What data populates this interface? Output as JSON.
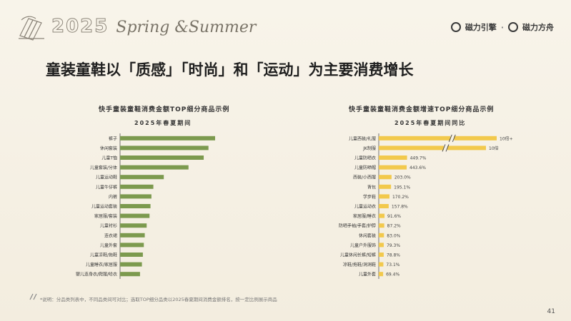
{
  "header": {
    "year_outline": "2025",
    "season_name": "Spring &Summer",
    "brand_left": "磁力引擎",
    "brand_sep": "·",
    "brand_right": "磁力方舟"
  },
  "page_title": "童装童鞋以「质感」「时尚」和「运动」为主要消费增长",
  "footnote": "*说明：分品类列表中，不同品类间可对比；选取TOP细分品类以2025春夏期间消费金额排名，按一定比例展示商品",
  "page_number": "41",
  "colors": {
    "left_bar": "#7c9a4e",
    "right_bar": "#f2c94c",
    "axis": "#555555"
  },
  "chart_data": [
    {
      "type": "bar",
      "orientation": "horizontal",
      "title": "快手童装童鞋消费金额TOP细分商品示例",
      "subtitle": "2025年春夏期间",
      "categories": [
        "裤子",
        "休闲套装",
        "儿童T恤",
        "儿童套装/分体",
        "儿童运动鞋",
        "儿童牛仔裤",
        "内裤",
        "儿童运动套装",
        "家居服/套装",
        "儿童衬衫",
        "连衣裙",
        "儿童外套",
        "儿童凉鞋/拖鞋",
        "儿童睡衣/家居服",
        "婴儿连身衣/爬服/哈衣"
      ],
      "values": [
        100,
        93,
        88,
        72,
        46,
        35,
        33,
        32,
        31,
        28,
        26,
        25,
        24,
        23,
        21
      ],
      "value_labels_shown": false,
      "xlim": [
        0,
        100
      ]
    },
    {
      "type": "bar",
      "orientation": "horizontal",
      "title": "快手童装童鞋消费金额增速TOP细分商品示例",
      "subtitle": "2025年春夏期间同比",
      "categories": [
        "儿童西装/礼服",
        "JK制服",
        "儿童防晒衣",
        "儿童防晒帽",
        "西装/小西服",
        "背包",
        "学步鞋",
        "儿童运动衣",
        "家居服/睡衣",
        "防晒手袖/手套/护脖",
        "休闲套装",
        "儿童户外服饰",
        "儿童休闲长裤/短裤",
        "凉鞋/拖鞋/洞洞鞋",
        "儿童外套"
      ],
      "values": [
        1090,
        1060,
        449.7,
        443.6,
        203.0,
        195.1,
        170.2,
        157.8,
        91.6,
        87.2,
        83.0,
        79.3,
        78.8,
        73.1,
        69.4
      ],
      "value_labels": [
        "10倍+",
        "10倍",
        "449.7%",
        "443.6%",
        "203.0%",
        "195.1%",
        "170.2%",
        "157.8%",
        "91.6%",
        "87.2%",
        "83.0%",
        "79.3%",
        "78.8%",
        "73.1%",
        "69.4%"
      ],
      "axis_break": true,
      "unit": "%"
    }
  ]
}
